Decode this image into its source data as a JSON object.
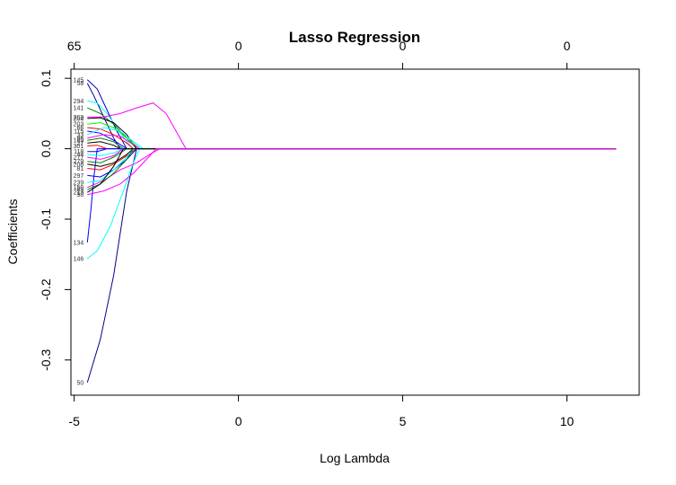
{
  "chart_data": {
    "type": "line",
    "title": "Lasso Regression",
    "xlabel": "Log Lambda",
    "ylabel": "Coefficients",
    "xlim": [
      -5.1,
      12.2
    ],
    "ylim": [
      -0.35,
      0.113
    ],
    "x_ticks": [
      -5,
      0,
      5,
      10
    ],
    "y_ticks": [
      -0.3,
      -0.2,
      -0.1,
      0.0,
      0.1
    ],
    "y_tick_labels": [
      "-0.3",
      "-0.2",
      "-0.1",
      "0.0",
      "0.1"
    ],
    "top_axis": {
      "at": [
        -5,
        0,
        5,
        10
      ],
      "labels": [
        "65",
        "0",
        "0",
        "0"
      ]
    },
    "x_end": 11.5,
    "grid": false,
    "legend": "none",
    "series": [
      {
        "label": "50",
        "color": "#00008b",
        "points": [
          [
            -4.6,
            -0.332
          ],
          [
            -4.2,
            -0.27
          ],
          [
            -3.8,
            -0.18
          ],
          [
            -3.4,
            -0.06
          ],
          [
            -3.1,
            0.0
          ]
        ]
      },
      {
        "label": "146",
        "color": "#00ffff",
        "points": [
          [
            -4.6,
            -0.156
          ],
          [
            -4.3,
            -0.145
          ],
          [
            -3.9,
            -0.11
          ],
          [
            -3.5,
            -0.06
          ],
          [
            -3.2,
            -0.02
          ],
          [
            -3.0,
            0.0
          ]
        ]
      },
      {
        "label": "134",
        "color": "#0000ff",
        "points": [
          [
            -4.6,
            -0.133
          ],
          [
            -4.5,
            -0.09
          ],
          [
            -4.4,
            -0.04
          ],
          [
            -4.3,
            0.0
          ]
        ]
      },
      {
        "label": "145",
        "color": "#0000cd",
        "points": [
          [
            -4.6,
            0.098
          ],
          [
            -4.3,
            0.085
          ],
          [
            -4.0,
            0.055
          ],
          [
            -3.7,
            0.025
          ],
          [
            -3.4,
            0.0
          ]
        ]
      },
      {
        "label": "58",
        "color": "#00008b",
        "points": [
          [
            -4.6,
            0.093
          ],
          [
            -4.4,
            0.075
          ],
          [
            -4.1,
            0.045
          ],
          [
            -3.8,
            0.015
          ],
          [
            -3.6,
            0.0
          ]
        ]
      },
      {
        "label": "294",
        "color": "#00ffff",
        "points": [
          [
            -4.6,
            0.068
          ],
          [
            -4.3,
            0.065
          ],
          [
            -4.0,
            0.05
          ],
          [
            -3.7,
            0.03
          ],
          [
            -3.4,
            0.01
          ],
          [
            -3.2,
            0.0
          ]
        ]
      },
      {
        "label": "141",
        "color": "#008000",
        "points": [
          [
            -4.6,
            0.058
          ],
          [
            -4.2,
            0.05
          ],
          [
            -3.8,
            0.035
          ],
          [
            -3.4,
            0.015
          ],
          [
            -3.1,
            0.0
          ]
        ]
      },
      {
        "label": "269",
        "color": "#ff00ff",
        "points": [
          [
            -4.6,
            0.045
          ],
          [
            -4.1,
            0.045
          ],
          [
            -3.6,
            0.05
          ],
          [
            -3.1,
            0.058
          ],
          [
            -2.6,
            0.065
          ],
          [
            -2.2,
            0.05
          ],
          [
            -1.9,
            0.025
          ],
          [
            -1.6,
            0.0
          ]
        ]
      },
      {
        "label": "204",
        "color": "#000000",
        "points": [
          [
            -4.6,
            0.043
          ],
          [
            -4.2,
            0.044
          ],
          [
            -3.8,
            0.037
          ],
          [
            -3.4,
            0.02
          ],
          [
            -3.1,
            0.0
          ]
        ]
      },
      {
        "label": "203",
        "color": "#00ff00",
        "points": [
          [
            -4.6,
            0.035
          ],
          [
            -4.2,
            0.037
          ],
          [
            -3.8,
            0.03
          ],
          [
            -3.4,
            0.015
          ],
          [
            -3.0,
            0.0
          ]
        ]
      },
      {
        "label": "66",
        "color": "#ff0000",
        "points": [
          [
            -4.6,
            0.03
          ],
          [
            -4.2,
            0.028
          ],
          [
            -3.8,
            0.02
          ],
          [
            -3.4,
            0.008
          ],
          [
            -3.2,
            0.0
          ]
        ]
      },
      {
        "label": "115",
        "color": "#0000ff",
        "points": [
          [
            -4.6,
            0.025
          ],
          [
            -4.2,
            0.022
          ],
          [
            -3.8,
            0.012
          ],
          [
            -3.5,
            0.003
          ],
          [
            -3.4,
            0.0
          ]
        ]
      },
      {
        "label": "33",
        "color": "#00ffff",
        "points": [
          [
            -4.6,
            0.02
          ],
          [
            -4.1,
            0.03
          ],
          [
            -3.6,
            0.025
          ],
          [
            -3.2,
            0.01
          ],
          [
            -2.9,
            0.0
          ]
        ]
      },
      {
        "label": "96",
        "color": "#ff00ff",
        "points": [
          [
            -4.6,
            0.015
          ],
          [
            -4.1,
            0.02
          ],
          [
            -3.6,
            0.018
          ],
          [
            -3.2,
            0.006
          ],
          [
            -3.0,
            0.0
          ]
        ]
      },
      {
        "label": "189",
        "color": "#008000",
        "points": [
          [
            -4.6,
            0.012
          ],
          [
            -4.2,
            0.015
          ],
          [
            -3.8,
            0.01
          ],
          [
            -3.5,
            0.0
          ]
        ]
      },
      {
        "label": "27",
        "color": "#000000",
        "points": [
          [
            -4.6,
            0.008
          ],
          [
            -4.2,
            0.01
          ],
          [
            -3.8,
            0.005
          ],
          [
            -3.6,
            0.0
          ]
        ]
      },
      {
        "label": "301",
        "color": "#ff0000",
        "points": [
          [
            -4.6,
            0.004
          ],
          [
            -4.3,
            0.005
          ],
          [
            -4.0,
            0.0
          ]
        ]
      },
      {
        "label": "118",
        "color": "#0000ff",
        "points": [
          [
            -4.6,
            -0.004
          ],
          [
            -4.3,
            -0.004
          ],
          [
            -4.0,
            0.0
          ]
        ]
      },
      {
        "label": "44",
        "color": "#00ffff",
        "points": [
          [
            -4.6,
            -0.008
          ],
          [
            -4.2,
            -0.01
          ],
          [
            -3.8,
            -0.006
          ],
          [
            -3.5,
            0.0
          ]
        ]
      },
      {
        "label": "277",
        "color": "#ff00ff",
        "points": [
          [
            -4.6,
            -0.012
          ],
          [
            -4.2,
            -0.015
          ],
          [
            -3.8,
            -0.01
          ],
          [
            -3.5,
            0.0
          ]
        ]
      },
      {
        "label": "279",
        "color": "#008000",
        "points": [
          [
            -4.6,
            -0.018
          ],
          [
            -4.2,
            -0.02
          ],
          [
            -3.8,
            -0.012
          ],
          [
            -3.4,
            0.0
          ]
        ]
      },
      {
        "label": "208",
        "color": "#000000",
        "points": [
          [
            -4.6,
            -0.022
          ],
          [
            -4.2,
            -0.025
          ],
          [
            -3.8,
            -0.02
          ],
          [
            -3.4,
            -0.008
          ],
          [
            -3.2,
            0.0
          ]
        ]
      },
      {
        "label": "81",
        "color": "#ff0000",
        "points": [
          [
            -4.6,
            -0.028
          ],
          [
            -4.2,
            -0.03
          ],
          [
            -3.8,
            -0.022
          ],
          [
            -3.4,
            -0.01
          ],
          [
            -3.1,
            0.0
          ]
        ]
      },
      {
        "label": "297",
        "color": "#0000ff",
        "points": [
          [
            -4.6,
            -0.038
          ],
          [
            -4.2,
            -0.04
          ],
          [
            -3.8,
            -0.03
          ],
          [
            -3.4,
            -0.015
          ],
          [
            -3.1,
            0.0
          ]
        ]
      },
      {
        "label": "239",
        "color": "#00ffff",
        "points": [
          [
            -4.6,
            -0.048
          ],
          [
            -4.2,
            -0.045
          ],
          [
            -3.8,
            -0.03
          ],
          [
            -3.4,
            -0.012
          ],
          [
            -3.2,
            0.0
          ]
        ]
      },
      {
        "label": "150",
        "color": "#ff00ff",
        "points": [
          [
            -4.6,
            -0.055
          ],
          [
            -4.1,
            -0.045
          ],
          [
            -3.6,
            -0.03
          ],
          [
            -3.1,
            -0.02
          ],
          [
            -2.7,
            -0.008
          ],
          [
            -2.4,
            0.0
          ]
        ]
      },
      {
        "label": "65",
        "color": "#008000",
        "points": [
          [
            -4.6,
            -0.058
          ],
          [
            -4.2,
            -0.05
          ],
          [
            -3.8,
            -0.035
          ],
          [
            -3.4,
            -0.015
          ],
          [
            -3.2,
            0.0
          ]
        ]
      },
      {
        "label": "213",
        "color": "#000000",
        "points": [
          [
            -4.6,
            -0.062
          ],
          [
            -4.2,
            -0.05
          ],
          [
            -3.8,
            -0.025
          ],
          [
            -3.5,
            0.0
          ]
        ]
      },
      {
        "label": "98",
        "color": "#ff00ff",
        "points": [
          [
            -4.6,
            -0.065
          ],
          [
            -4.1,
            -0.06
          ],
          [
            -3.6,
            -0.05
          ],
          [
            -3.2,
            -0.035
          ],
          [
            -2.8,
            -0.015
          ],
          [
            -2.5,
            0.0
          ]
        ]
      }
    ]
  }
}
